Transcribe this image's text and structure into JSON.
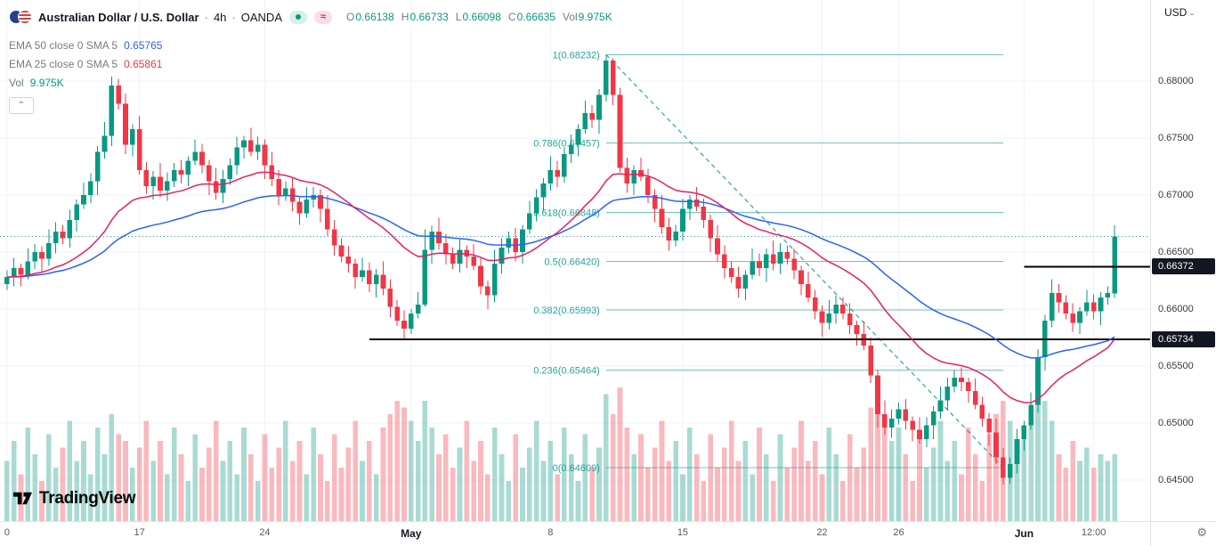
{
  "header": {
    "symbol_title": "Australian Dollar / U.S. Dollar",
    "separator": "·",
    "interval": "4h",
    "exchange": "OANDA",
    "ohlc_items": [
      {
        "label": "O",
        "value": "0.66138"
      },
      {
        "label": "H",
        "value": "0.66733"
      },
      {
        "label": "L",
        "value": "0.66098"
      },
      {
        "label": "C",
        "value": "0.66635"
      },
      {
        "label": "Vol",
        "value": "9.975K"
      }
    ],
    "currency_label": "USD"
  },
  "indicators": [
    {
      "id": "ema-50",
      "name": "EMA 50 close 0 SMA 5",
      "value": "0.65765",
      "color": "#2962ff"
    },
    {
      "id": "ema-25",
      "name": "EMA 25 close 0 SMA 5",
      "value": "0.65861",
      "color": "#f23645"
    },
    {
      "id": "volume",
      "name": "Vol",
      "value": "9.975K",
      "color": "#089981"
    }
  ],
  "icons": {
    "approx": "≈",
    "chevron_down": "⌄",
    "chevron_up": "⌃",
    "gear": "⚙"
  },
  "price_axis": {
    "ticks": [
      "0.68000",
      "0.67500",
      "0.67000",
      "0.66500",
      "0.66000",
      "0.65500",
      "0.65000",
      "0.64500"
    ],
    "badges": [
      {
        "text": "0.66372",
        "price": 0.66372
      },
      {
        "text": "0.65734",
        "price": 0.65734
      }
    ]
  },
  "time_axis": {
    "labels": [
      {
        "text": "0",
        "index": 0,
        "bold": false
      },
      {
        "text": "17",
        "index": 19,
        "bold": false
      },
      {
        "text": "24",
        "index": 37,
        "bold": false
      },
      {
        "text": "May",
        "index": 58,
        "bold": true
      },
      {
        "text": "8",
        "index": 78,
        "bold": false
      },
      {
        "text": "15",
        "index": 97,
        "bold": false
      },
      {
        "text": "22",
        "index": 117,
        "bold": false
      },
      {
        "text": "26",
        "index": 128,
        "bold": false
      },
      {
        "text": "Jun",
        "index": 146,
        "bold": true
      },
      {
        "text": "12:00",
        "index": 156,
        "bold": false
      }
    ]
  },
  "logo": {
    "text": "TradingView"
  },
  "colors": {
    "up": "#089981",
    "down": "#f23645",
    "vol_up": "rgba(8,153,129,0.35)",
    "vol_down": "rgba(242,54,69,0.35)",
    "ema50": "#2962ff",
    "ema25": "#e91e63",
    "fib": "#26a69a",
    "grid": "#f0f3fa",
    "ray": "#000000",
    "close_line": "#089981",
    "badge_bg": "#131722",
    "badge_text": "#ffffff"
  },
  "chart_data": {
    "type": "candlestick",
    "symbol": "AUD/USD",
    "interval": "4h",
    "price_view_range": [
      0.64141,
      0.68711
    ],
    "fib_retracement": {
      "from_index": 86,
      "to_index": 143,
      "levels": [
        {
          "label": "1(0.68232)",
          "price": 0.68232
        },
        {
          "label": "0.786(0.67457)",
          "price": 0.67457
        },
        {
          "label": "0.618(0.66848)",
          "price": 0.66848
        },
        {
          "label": "0.5(0.66420)",
          "price": 0.6642
        },
        {
          "label": "0.382(0.65993)",
          "price": 0.65993
        },
        {
          "label": "0.236(0.65464)",
          "price": 0.65464
        },
        {
          "label": "0(0.64609)",
          "price": 0.64609
        }
      ]
    },
    "trendline": {
      "from_index": 86,
      "from_price": 0.68232,
      "to_index": 143,
      "to_price": 0.64609,
      "style": "dashed"
    },
    "horizontal_rays": [
      {
        "price": 0.66372,
        "from_index": 146
      },
      {
        "price": 0.65734,
        "from_index": 52
      }
    ],
    "last_close_line": 0.66635,
    "ema_series": [
      {
        "period": 50,
        "color": "#2962ff"
      },
      {
        "period": 25,
        "color": "#e91e63"
      }
    ],
    "candles": [
      [
        0.6622,
        0.6634,
        0.6617,
        0.6628,
        9
      ],
      [
        0.6628,
        0.6645,
        0.662,
        0.6636,
        12
      ],
      [
        0.6636,
        0.664,
        0.662,
        0.663,
        7
      ],
      [
        0.663,
        0.6653,
        0.6626,
        0.6642,
        14
      ],
      [
        0.6642,
        0.6657,
        0.6635,
        0.665,
        10
      ],
      [
        0.665,
        0.6655,
        0.6632,
        0.6644,
        6
      ],
      [
        0.6644,
        0.667,
        0.6638,
        0.6658,
        13
      ],
      [
        0.6658,
        0.6676,
        0.6649,
        0.6668,
        8
      ],
      [
        0.6668,
        0.6674,
        0.6657,
        0.6662,
        11
      ],
      [
        0.6662,
        0.6687,
        0.6654,
        0.6678,
        15
      ],
      [
        0.6678,
        0.6696,
        0.6668,
        0.6692,
        9
      ],
      [
        0.6692,
        0.6711,
        0.6688,
        0.67,
        12
      ],
      [
        0.67,
        0.6719,
        0.6693,
        0.6712,
        7
      ],
      [
        0.6712,
        0.6743,
        0.67,
        0.6738,
        14
      ],
      [
        0.6738,
        0.6764,
        0.6732,
        0.6752,
        10
      ],
      [
        0.6752,
        0.6804,
        0.6743,
        0.6796,
        16
      ],
      [
        0.6796,
        0.6802,
        0.6775,
        0.678,
        13
      ],
      [
        0.678,
        0.6789,
        0.6736,
        0.6744,
        12
      ],
      [
        0.6744,
        0.6762,
        0.6734,
        0.6758,
        8
      ],
      [
        0.6758,
        0.6769,
        0.6718,
        0.6722,
        11
      ],
      [
        0.6722,
        0.6729,
        0.6701,
        0.6708,
        15
      ],
      [
        0.6708,
        0.6721,
        0.6696,
        0.6716,
        9
      ],
      [
        0.6716,
        0.6728,
        0.6698,
        0.6704,
        12
      ],
      [
        0.6704,
        0.672,
        0.6695,
        0.6712,
        7
      ],
      [
        0.6712,
        0.6728,
        0.6707,
        0.6722,
        14
      ],
      [
        0.6722,
        0.6731,
        0.671,
        0.6718,
        10
      ],
      [
        0.6718,
        0.6734,
        0.6708,
        0.673,
        6
      ],
      [
        0.673,
        0.6749,
        0.6726,
        0.6738,
        13
      ],
      [
        0.6738,
        0.6745,
        0.6719,
        0.6726,
        8
      ],
      [
        0.6726,
        0.6731,
        0.67,
        0.6712,
        11
      ],
      [
        0.6712,
        0.6724,
        0.6696,
        0.6702,
        15
      ],
      [
        0.6702,
        0.6722,
        0.6693,
        0.6714,
        9
      ],
      [
        0.6714,
        0.6732,
        0.6709,
        0.6726,
        12
      ],
      [
        0.6726,
        0.6751,
        0.6718,
        0.6742,
        7
      ],
      [
        0.6742,
        0.6752,
        0.6732,
        0.6748,
        14
      ],
      [
        0.6748,
        0.6759,
        0.6734,
        0.6738,
        10
      ],
      [
        0.6738,
        0.6751,
        0.6731,
        0.6744,
        6
      ],
      [
        0.6744,
        0.6749,
        0.6714,
        0.6726,
        13
      ],
      [
        0.6726,
        0.6738,
        0.6708,
        0.6714,
        8
      ],
      [
        0.6714,
        0.6722,
        0.6691,
        0.67,
        11
      ],
      [
        0.67,
        0.6712,
        0.6695,
        0.6706,
        15
      ],
      [
        0.6706,
        0.6715,
        0.6686,
        0.6694,
        9
      ],
      [
        0.6694,
        0.6698,
        0.6674,
        0.6684,
        12
      ],
      [
        0.6684,
        0.6707,
        0.668,
        0.6696,
        7
      ],
      [
        0.6696,
        0.6707,
        0.6689,
        0.67,
        14
      ],
      [
        0.67,
        0.6705,
        0.6676,
        0.6688,
        10
      ],
      [
        0.6688,
        0.67,
        0.6664,
        0.667,
        6
      ],
      [
        0.667,
        0.6678,
        0.6647,
        0.6656,
        13
      ],
      [
        0.6656,
        0.6662,
        0.6641,
        0.6646,
        8
      ],
      [
        0.6646,
        0.6655,
        0.6632,
        0.664,
        11
      ],
      [
        0.664,
        0.6644,
        0.6618,
        0.6628,
        15
      ],
      [
        0.6628,
        0.6645,
        0.6624,
        0.6634,
        9
      ],
      [
        0.6634,
        0.6641,
        0.6615,
        0.6622,
        12
      ],
      [
        0.6622,
        0.6635,
        0.661,
        0.663,
        7
      ],
      [
        0.663,
        0.6642,
        0.6612,
        0.6618,
        14
      ],
      [
        0.6618,
        0.6626,
        0.6593,
        0.6602,
        16
      ],
      [
        0.6602,
        0.6608,
        0.6585,
        0.659,
        18
      ],
      [
        0.659,
        0.6599,
        0.65734,
        0.6583,
        17
      ],
      [
        0.6583,
        0.66,
        0.6578,
        0.6596,
        15
      ],
      [
        0.6596,
        0.6615,
        0.6592,
        0.6604,
        12
      ],
      [
        0.6604,
        0.667,
        0.6602,
        0.6652,
        18
      ],
      [
        0.6652,
        0.6673,
        0.664,
        0.6668,
        14
      ],
      [
        0.6668,
        0.668,
        0.6652,
        0.6658,
        10
      ],
      [
        0.6658,
        0.6666,
        0.6639,
        0.6648,
        13
      ],
      [
        0.6648,
        0.6654,
        0.6635,
        0.664,
        8
      ],
      [
        0.664,
        0.6661,
        0.6632,
        0.6652,
        11
      ],
      [
        0.6652,
        0.6656,
        0.6636,
        0.6646,
        15
      ],
      [
        0.6646,
        0.6657,
        0.6634,
        0.6638,
        9
      ],
      [
        0.6638,
        0.6645,
        0.6613,
        0.662,
        12
      ],
      [
        0.662,
        0.6625,
        0.66,
        0.6612,
        7
      ],
      [
        0.6612,
        0.6652,
        0.6606,
        0.664,
        14
      ],
      [
        0.664,
        0.6662,
        0.6631,
        0.6654,
        10
      ],
      [
        0.6654,
        0.6668,
        0.6649,
        0.6662,
        6
      ],
      [
        0.6662,
        0.6671,
        0.6642,
        0.665,
        13
      ],
      [
        0.665,
        0.6674,
        0.664,
        0.667,
        8
      ],
      [
        0.667,
        0.6695,
        0.6666,
        0.6684,
        11
      ],
      [
        0.6684,
        0.6705,
        0.6677,
        0.6698,
        15
      ],
      [
        0.6698,
        0.6715,
        0.6686,
        0.671,
        9
      ],
      [
        0.671,
        0.6734,
        0.6704,
        0.6722,
        12
      ],
      [
        0.6722,
        0.673,
        0.6707,
        0.6716,
        7
      ],
      [
        0.6716,
        0.6742,
        0.6711,
        0.6736,
        14
      ],
      [
        0.6736,
        0.6753,
        0.6728,
        0.6744,
        10
      ],
      [
        0.6744,
        0.6762,
        0.6734,
        0.6758,
        6
      ],
      [
        0.6758,
        0.6783,
        0.6754,
        0.6772,
        13
      ],
      [
        0.6772,
        0.6779,
        0.6759,
        0.6766,
        8
      ],
      [
        0.6766,
        0.6793,
        0.6754,
        0.6788,
        11
      ],
      [
        0.6788,
        0.68232,
        0.6782,
        0.6818,
        19
      ],
      [
        0.6818,
        0.682,
        0.6779,
        0.6788,
        16
      ],
      [
        0.6788,
        0.6794,
        0.672,
        0.6724,
        20
      ],
      [
        0.6724,
        0.6733,
        0.6702,
        0.671,
        14
      ],
      [
        0.671,
        0.6726,
        0.67,
        0.6722,
        10
      ],
      [
        0.6722,
        0.6733,
        0.6712,
        0.6716,
        13
      ],
      [
        0.6716,
        0.6723,
        0.6693,
        0.67,
        8
      ],
      [
        0.67,
        0.6705,
        0.6676,
        0.6688,
        11
      ],
      [
        0.6688,
        0.67,
        0.6666,
        0.6672,
        15
      ],
      [
        0.6672,
        0.668,
        0.6651,
        0.666,
        9
      ],
      [
        0.666,
        0.6674,
        0.6655,
        0.6668,
        12
      ],
      [
        0.6668,
        0.6697,
        0.666,
        0.6688,
        7
      ],
      [
        0.6688,
        0.67,
        0.6678,
        0.6696,
        14
      ],
      [
        0.6696,
        0.6707,
        0.6686,
        0.669,
        10
      ],
      [
        0.669,
        0.6697,
        0.6671,
        0.6678,
        6
      ],
      [
        0.6678,
        0.6683,
        0.665,
        0.6662,
        13
      ],
      [
        0.6662,
        0.6674,
        0.6642,
        0.6648,
        8
      ],
      [
        0.6648,
        0.6656,
        0.6627,
        0.6636,
        11
      ],
      [
        0.6636,
        0.6642,
        0.6623,
        0.6628,
        15
      ],
      [
        0.6628,
        0.6637,
        0.661,
        0.6618,
        9
      ],
      [
        0.6618,
        0.6634,
        0.6608,
        0.663,
        12
      ],
      [
        0.663,
        0.6653,
        0.6626,
        0.6642,
        7
      ],
      [
        0.6642,
        0.6649,
        0.6629,
        0.6636,
        14
      ],
      [
        0.6636,
        0.6653,
        0.6624,
        0.6648,
        10
      ],
      [
        0.6648,
        0.666,
        0.6634,
        0.664,
        6
      ],
      [
        0.664,
        0.6658,
        0.6631,
        0.665,
        13
      ],
      [
        0.665,
        0.6656,
        0.6639,
        0.6644,
        8
      ],
      [
        0.6644,
        0.6653,
        0.6626,
        0.6634,
        11
      ],
      [
        0.6634,
        0.6638,
        0.6612,
        0.6622,
        15
      ],
      [
        0.6622,
        0.6633,
        0.6606,
        0.661,
        9
      ],
      [
        0.661,
        0.6617,
        0.6591,
        0.6598,
        12
      ],
      [
        0.6598,
        0.6603,
        0.6576,
        0.6588,
        7
      ],
      [
        0.6588,
        0.6608,
        0.6582,
        0.6596,
        14
      ],
      [
        0.6596,
        0.6612,
        0.6587,
        0.6604,
        10
      ],
      [
        0.6604,
        0.661,
        0.6591,
        0.6596,
        6
      ],
      [
        0.6596,
        0.6605,
        0.6578,
        0.6586,
        13
      ],
      [
        0.6586,
        0.659,
        0.6568,
        0.6578,
        8
      ],
      [
        0.6578,
        0.6589,
        0.6564,
        0.6568,
        11
      ],
      [
        0.6568,
        0.6575,
        0.6535,
        0.6542,
        17
      ],
      [
        0.6542,
        0.6547,
        0.6496,
        0.6508,
        19
      ],
      [
        0.6508,
        0.652,
        0.649,
        0.6496,
        16
      ],
      [
        0.6496,
        0.6512,
        0.6487,
        0.6504,
        12
      ],
      [
        0.6504,
        0.6518,
        0.6499,
        0.6512,
        14
      ],
      [
        0.6512,
        0.6521,
        0.6494,
        0.6502,
        10
      ],
      [
        0.6502,
        0.6506,
        0.6484,
        0.6494,
        6
      ],
      [
        0.6494,
        0.6505,
        0.6482,
        0.6486,
        13
      ],
      [
        0.6486,
        0.6505,
        0.6479,
        0.6498,
        8
      ],
      [
        0.6498,
        0.6515,
        0.6486,
        0.651,
        11
      ],
      [
        0.651,
        0.6532,
        0.6504,
        0.652,
        15
      ],
      [
        0.652,
        0.654,
        0.6511,
        0.6532,
        9
      ],
      [
        0.6532,
        0.6546,
        0.6527,
        0.654,
        12
      ],
      [
        0.654,
        0.6549,
        0.6528,
        0.6536,
        7
      ],
      [
        0.6536,
        0.654,
        0.6518,
        0.6528,
        14
      ],
      [
        0.6528,
        0.6539,
        0.6512,
        0.6516,
        10
      ],
      [
        0.6516,
        0.6523,
        0.6497,
        0.6504,
        6
      ],
      [
        0.6504,
        0.6509,
        0.648,
        0.6492,
        13
      ],
      [
        0.6492,
        0.6504,
        0.6464,
        0.647,
        16
      ],
      [
        0.647,
        0.6478,
        0.6446,
        0.6452,
        18
      ],
      [
        0.6452,
        0.647,
        0.6447,
        0.6464,
        15
      ],
      [
        0.6464,
        0.6495,
        0.6456,
        0.6486,
        12
      ],
      [
        0.6486,
        0.6502,
        0.6476,
        0.6498,
        14
      ],
      [
        0.6498,
        0.6527,
        0.6494,
        0.6516,
        16
      ],
      [
        0.6516,
        0.6565,
        0.6509,
        0.6558,
        20
      ],
      [
        0.6558,
        0.6595,
        0.6546,
        0.659,
        18
      ],
      [
        0.659,
        0.6626,
        0.6584,
        0.6614,
        15
      ],
      [
        0.6614,
        0.6622,
        0.6597,
        0.6606,
        10
      ],
      [
        0.6606,
        0.6612,
        0.6591,
        0.6596,
        8
      ],
      [
        0.6596,
        0.6605,
        0.658,
        0.6588,
        12
      ],
      [
        0.6588,
        0.6602,
        0.6578,
        0.6598,
        9
      ],
      [
        0.6598,
        0.6617,
        0.6594,
        0.6606,
        11
      ],
      [
        0.6606,
        0.6613,
        0.6591,
        0.6598,
        8
      ],
      [
        0.6598,
        0.6615,
        0.6586,
        0.661,
        10
      ],
      [
        0.661,
        0.662,
        0.6604,
        0.6614,
        9
      ],
      [
        0.66138,
        0.66733,
        0.66098,
        0.66635,
        9.975
      ]
    ]
  }
}
